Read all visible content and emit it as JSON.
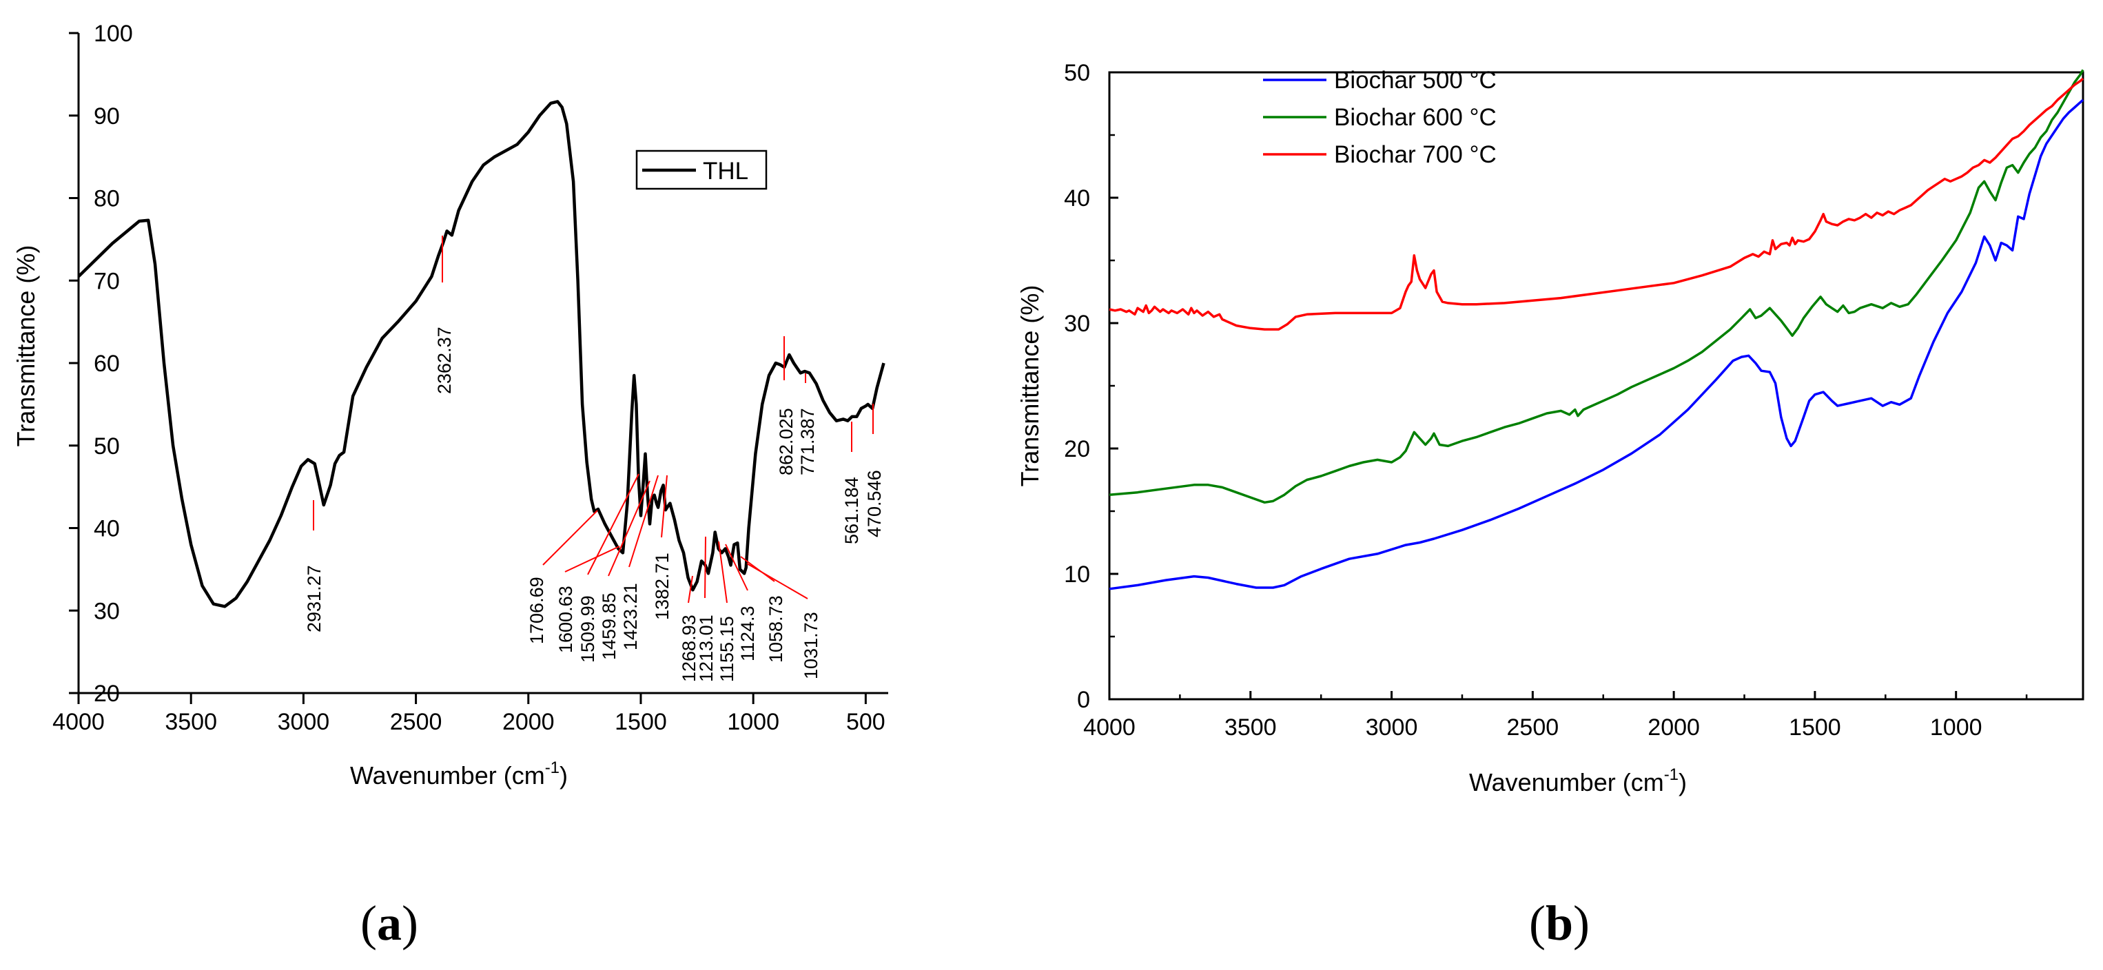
{
  "chart_data": [
    {
      "panel": "(a)",
      "panel_letter": "a",
      "type": "line",
      "xlabel": "Wavenumber (cm",
      "xlabel_sup": "-1",
      "xlabel_close": ")",
      "ylabel": "Transmittance (%)",
      "xlim": [
        4000,
        400
      ],
      "ylim": [
        20,
        100
      ],
      "xticks": [
        4000,
        3500,
        3000,
        2500,
        2000,
        1500,
        1000,
        500
      ],
      "yticks": [
        20,
        30,
        40,
        50,
        60,
        70,
        80,
        90,
        100
      ],
      "legend": {
        "position": "top-right",
        "entries": [
          "THL"
        ]
      },
      "series": [
        {
          "name": "THL",
          "color": "#000000",
          "x": [
            4000,
            3850,
            3730,
            3690,
            3660,
            3620,
            3580,
            3540,
            3500,
            3450,
            3400,
            3350,
            3300,
            3250,
            3200,
            3150,
            3100,
            3050,
            3010,
            2980,
            2950,
            2931,
            2910,
            2880,
            2860,
            2840,
            2820,
            2780,
            2720,
            2650,
            2580,
            2500,
            2430,
            2400,
            2380,
            2362,
            2340,
            2310,
            2250,
            2200,
            2150,
            2050,
            2000,
            1950,
            1900,
            1870,
            1850,
            1830,
            1800,
            1780,
            1760,
            1740,
            1720,
            1707,
            1690,
            1660,
            1620,
            1600,
            1580,
            1560,
            1540,
            1530,
            1520,
            1510,
            1500,
            1490,
            1480,
            1470,
            1460,
            1450,
            1440,
            1430,
            1423,
            1410,
            1400,
            1390,
            1383,
            1370,
            1350,
            1330,
            1310,
            1290,
            1269,
            1250,
            1230,
            1213,
            1200,
            1180,
            1170,
            1155,
            1140,
            1124,
            1110,
            1100,
            1085,
            1070,
            1059,
            1040,
            1032,
            1020,
            990,
            960,
            930,
            900,
            880,
            862,
            840,
            820,
            800,
            790,
            771,
            750,
            720,
            690,
            660,
            630,
            600,
            580,
            561,
            540,
            520,
            500,
            490,
            470,
            450,
            430,
            420
          ],
          "y": [
            70.5,
            74.5,
            77.2,
            77.3,
            72,
            60,
            50,
            43.5,
            38,
            33,
            30.8,
            30.5,
            31.5,
            33.5,
            36,
            38.5,
            41.5,
            45,
            47.5,
            48.3,
            47.8,
            45.5,
            42.8,
            45.2,
            47.8,
            48.8,
            49.2,
            56,
            59.5,
            63,
            65,
            67.5,
            70.5,
            73,
            74.5,
            76,
            75.5,
            78.5,
            82,
            84,
            85,
            86.5,
            88,
            90,
            91.5,
            91.7,
            91,
            89,
            82,
            70,
            55,
            48,
            43.5,
            42,
            42.3,
            40.5,
            38.5,
            37.5,
            37,
            43,
            54,
            58.5,
            55,
            46,
            41.5,
            45,
            49,
            44,
            40.5,
            43.5,
            44,
            43,
            42.5,
            44.5,
            45.2,
            42.2,
            42.5,
            43,
            41,
            38.5,
            37,
            34,
            32.5,
            33.5,
            36,
            35.5,
            34.5,
            37,
            39.5,
            37.5,
            37,
            37.5,
            36.5,
            35.5,
            38,
            38.2,
            35,
            34.5,
            35.2,
            40,
            49,
            55,
            58.5,
            60,
            59.8,
            59.5,
            61,
            60,
            59.2,
            58.8,
            59,
            58.8,
            57.5,
            55.5,
            54,
            53,
            53.2,
            53,
            53.5,
            53.5,
            54.5,
            54.8,
            55,
            54.5,
            57,
            59,
            60
          ]
        }
      ],
      "annotations": [
        "2931.27",
        "2362.37",
        "1706.69",
        "1600.63",
        "1509.99",
        "1459.85",
        "1423.21",
        "1382.71",
        "1268.93",
        "1213.01",
        "1155.15",
        "1124.3",
        "1058.73",
        "1031.73",
        "862.025",
        "771.387",
        "561.184",
        "470.546"
      ]
    },
    {
      "panel": "(b)",
      "panel_letter": "b",
      "type": "line",
      "xlabel": "Wavenumber (cm",
      "xlabel_sup": "-1",
      "xlabel_close": ")",
      "ylabel": "Transmittance (%)",
      "xlim": [
        4000,
        550
      ],
      "ylim": [
        0,
        50
      ],
      "xticks": [
        4000,
        3500,
        3000,
        2500,
        2000,
        1500,
        1000
      ],
      "yticks": [
        0,
        10,
        20,
        30,
        40,
        50
      ],
      "legend": {
        "position": "top-left",
        "entries": [
          "Biochar 500 °C",
          "Biochar 600 °C",
          "Biochar 700 °C"
        ]
      },
      "series": [
        {
          "name": "Biochar 500 °C",
          "color": "#0000ff",
          "x": [
            4000,
            3900,
            3800,
            3700,
            3650,
            3550,
            3480,
            3420,
            3380,
            3320,
            3250,
            3150,
            3050,
            2950,
            2900,
            2850,
            2750,
            2650,
            2550,
            2450,
            2350,
            2250,
            2150,
            2050,
            1950,
            1850,
            1790,
            1760,
            1735,
            1710,
            1690,
            1660,
            1640,
            1620,
            1600,
            1585,
            1570,
            1540,
            1520,
            1500,
            1470,
            1440,
            1420,
            1380,
            1340,
            1300,
            1260,
            1230,
            1200,
            1160,
            1130,
            1080,
            1030,
            980,
            930,
            900,
            880,
            860,
            840,
            820,
            800,
            780,
            760,
            740,
            720,
            700,
            680,
            650,
            620,
            600,
            580,
            560,
            550
          ],
          "y": [
            8.8,
            9.1,
            9.5,
            9.8,
            9.7,
            9.2,
            8.9,
            8.9,
            9.1,
            9.8,
            10.4,
            11.2,
            11.6,
            12.3,
            12.5,
            12.8,
            13.5,
            14.3,
            15.2,
            16.2,
            17.2,
            18.3,
            19.6,
            21.1,
            23.1,
            25.5,
            27,
            27.3,
            27.4,
            26.8,
            26.2,
            26.1,
            25.2,
            22.5,
            20.8,
            20.2,
            20.6,
            22.5,
            23.8,
            24.3,
            24.5,
            23.8,
            23.4,
            23.6,
            23.8,
            24,
            23.4,
            23.7,
            23.5,
            24,
            25.8,
            28.5,
            30.8,
            32.5,
            34.8,
            36.9,
            36.2,
            35,
            36.4,
            36.2,
            35.8,
            38.5,
            38.3,
            40.3,
            41.8,
            43.3,
            44.3,
            45.3,
            46.3,
            46.8,
            47.2,
            47.6,
            47.8
          ]
        },
        {
          "name": "Biochar 600 °C",
          "color": "#008000",
          "x": [
            4000,
            3900,
            3800,
            3700,
            3650,
            3600,
            3550,
            3500,
            3450,
            3420,
            3380,
            3340,
            3300,
            3250,
            3200,
            3150,
            3100,
            3050,
            3000,
            2970,
            2950,
            2920,
            2900,
            2880,
            2860,
            2850,
            2830,
            2800,
            2750,
            2700,
            2650,
            2600,
            2550,
            2500,
            2450,
            2400,
            2370,
            2350,
            2340,
            2320,
            2300,
            2250,
            2200,
            2150,
            2100,
            2050,
            2000,
            1950,
            1900,
            1850,
            1800,
            1760,
            1730,
            1710,
            1690,
            1660,
            1640,
            1620,
            1600,
            1580,
            1560,
            1540,
            1510,
            1480,
            1460,
            1440,
            1420,
            1400,
            1380,
            1360,
            1340,
            1300,
            1260,
            1230,
            1200,
            1170,
            1140,
            1100,
            1050,
            1000,
            950,
            920,
            900,
            880,
            860,
            840,
            820,
            800,
            780,
            760,
            740,
            720,
            700,
            680,
            660,
            640,
            620,
            600,
            580,
            560,
            550
          ],
          "y": [
            16.3,
            16.5,
            16.8,
            17.1,
            17.1,
            16.9,
            16.5,
            16.1,
            15.7,
            15.8,
            16.3,
            17,
            17.5,
            17.8,
            18.2,
            18.6,
            18.9,
            19.1,
            18.9,
            19.3,
            19.8,
            21.3,
            20.8,
            20.3,
            20.8,
            21.2,
            20.3,
            20.2,
            20.6,
            20.9,
            21.3,
            21.7,
            22,
            22.4,
            22.8,
            23,
            22.7,
            23.1,
            22.6,
            23.1,
            23.3,
            23.8,
            24.3,
            24.9,
            25.4,
            25.9,
            26.4,
            27,
            27.7,
            28.6,
            29.5,
            30.4,
            31.1,
            30.4,
            30.6,
            31.2,
            30.7,
            30.2,
            29.6,
            29,
            29.6,
            30.4,
            31.3,
            32.1,
            31.5,
            31.2,
            30.9,
            31.4,
            30.8,
            30.9,
            31.2,
            31.5,
            31.2,
            31.6,
            31.3,
            31.5,
            32.3,
            33.5,
            35,
            36.6,
            38.8,
            40.8,
            41.3,
            40.5,
            39.8,
            41.2,
            42.4,
            42.6,
            42,
            42.8,
            43.5,
            44,
            44.8,
            45.3,
            46.2,
            46.8,
            47.6,
            48.4,
            49.2,
            49.8,
            50.2
          ]
        },
        {
          "name": "Biochar 700 °C",
          "color": "#ff0000",
          "x": [
            4000,
            3980,
            3960,
            3940,
            3930,
            3910,
            3900,
            3880,
            3870,
            3860,
            3850,
            3840,
            3820,
            3810,
            3790,
            3780,
            3760,
            3740,
            3720,
            3710,
            3700,
            3690,
            3670,
            3650,
            3630,
            3610,
            3600,
            3580,
            3550,
            3500,
            3450,
            3400,
            3370,
            3340,
            3300,
            3200,
            3100,
            3000,
            2970,
            2950,
            2940,
            2930,
            2920,
            2910,
            2900,
            2880,
            2860,
            2850,
            2840,
            2820,
            2800,
            2750,
            2700,
            2600,
            2500,
            2400,
            2300,
            2200,
            2100,
            2000,
            1900,
            1800,
            1750,
            1720,
            1700,
            1680,
            1660,
            1650,
            1640,
            1620,
            1600,
            1590,
            1580,
            1570,
            1560,
            1540,
            1520,
            1500,
            1480,
            1470,
            1460,
            1440,
            1420,
            1400,
            1380,
            1360,
            1340,
            1320,
            1300,
            1280,
            1260,
            1240,
            1220,
            1200,
            1180,
            1160,
            1140,
            1120,
            1100,
            1080,
            1060,
            1040,
            1020,
            1000,
            980,
            960,
            940,
            920,
            900,
            880,
            860,
            840,
            820,
            800,
            780,
            760,
            740,
            720,
            700,
            680,
            660,
            640,
            620,
            600,
            580,
            560,
            550
          ],
          "y": [
            31.1,
            31,
            31.1,
            30.9,
            31,
            30.7,
            31.2,
            30.9,
            31.4,
            30.8,
            31,
            31.3,
            30.9,
            31.1,
            30.8,
            31,
            30.8,
            31.1,
            30.7,
            31.2,
            30.8,
            31,
            30.6,
            30.9,
            30.5,
            30.7,
            30.3,
            30.1,
            29.8,
            29.6,
            29.5,
            29.5,
            29.9,
            30.5,
            30.7,
            30.8,
            30.8,
            30.8,
            31.2,
            32.5,
            33,
            33.3,
            35.4,
            34.2,
            33.5,
            32.8,
            33.9,
            34.2,
            32.5,
            31.7,
            31.6,
            31.5,
            31.5,
            31.6,
            31.8,
            32,
            32.3,
            32.6,
            32.9,
            33.2,
            33.8,
            34.5,
            35.2,
            35.5,
            35.3,
            35.7,
            35.5,
            36.6,
            35.9,
            36.3,
            36.4,
            36.2,
            36.8,
            36.3,
            36.6,
            36.5,
            36.7,
            37.3,
            38.2,
            38.7,
            38.1,
            37.9,
            37.8,
            38.1,
            38.3,
            38.2,
            38.4,
            38.7,
            38.4,
            38.8,
            38.6,
            38.9,
            38.7,
            39,
            39.2,
            39.4,
            39.8,
            40.2,
            40.6,
            40.9,
            41.2,
            41.5,
            41.3,
            41.5,
            41.7,
            42,
            42.4,
            42.6,
            43,
            42.8,
            43.2,
            43.7,
            44.2,
            44.7,
            44.9,
            45.3,
            45.8,
            46.2,
            46.6,
            47,
            47.3,
            47.8,
            48.2,
            48.6,
            49,
            49.3,
            49.5
          ]
        }
      ]
    }
  ]
}
